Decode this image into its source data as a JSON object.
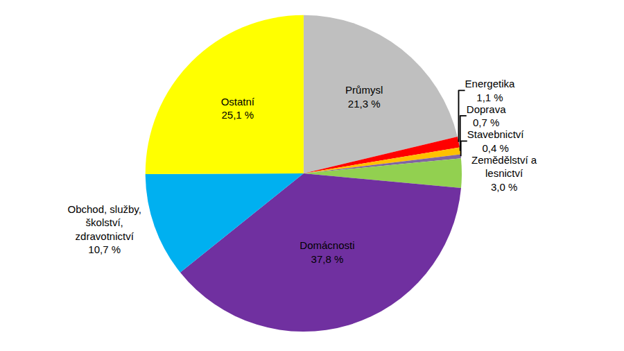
{
  "chart_data": {
    "type": "pie",
    "categories": [
      "Průmysl",
      "Energetika",
      "Doprava",
      "Stavebnictví",
      "Zemědělství a lesnictví",
      "Domácnosti",
      "Obchod, služby, školství, zdravotnictví",
      "Ostatní"
    ],
    "values": [
      21.3,
      1.1,
      0.7,
      0.4,
      3.0,
      37.8,
      10.7,
      25.1
    ],
    "value_labels": [
      "21,3 %",
      "1,1 %",
      "0,7 %",
      "0,4 %",
      "3,0 %",
      "37,8 %",
      "10,7 %",
      "25,1 %"
    ],
    "colors": [
      "#BFBFBF",
      "#FF0000",
      "#FFC000",
      "#8064A2",
      "#92D050",
      "#7030A0",
      "#00B0F0",
      "#FFFF00"
    ],
    "data_labels": true
  }
}
